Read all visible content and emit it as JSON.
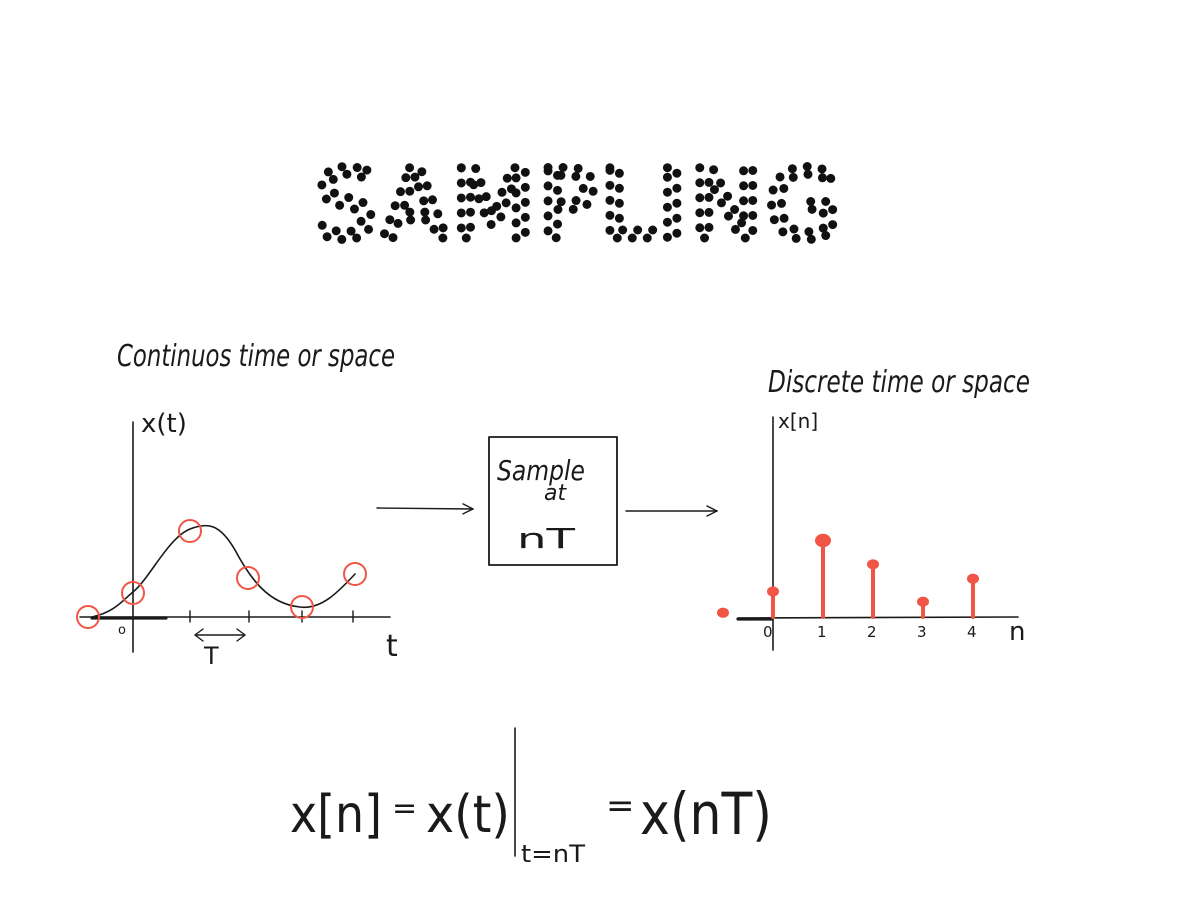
{
  "title": "SAMPLING",
  "left_panel": {
    "caption": "Continuos time or space",
    "y_label": "x(t)",
    "x_label": "t",
    "origin_label": "o",
    "period_label": "T"
  },
  "sampler_box": {
    "line1": "Sample",
    "line2": "at",
    "line3": "nT"
  },
  "right_panel": {
    "caption": "Discrete time or space",
    "y_label": "x[n]",
    "x_label": "n",
    "tick_labels": [
      "0",
      "1",
      "2",
      "3",
      "4"
    ]
  },
  "equation": {
    "lhs": "x[n]",
    "eq1": "=",
    "mid": "x(t)",
    "subscript": "t=nT",
    "eq2": "=",
    "rhs": "x(nT)"
  },
  "colors": {
    "ink": "#1a1a1a",
    "sample": "#f05545"
  },
  "chart_data": {
    "type": "scatter",
    "title": "",
    "xlabel": "n",
    "ylabel": "x[n]",
    "x": [
      -1,
      0,
      1,
      2,
      3,
      4
    ],
    "values": [
      0.05,
      0.3,
      0.9,
      0.62,
      0.18,
      0.45
    ]
  }
}
